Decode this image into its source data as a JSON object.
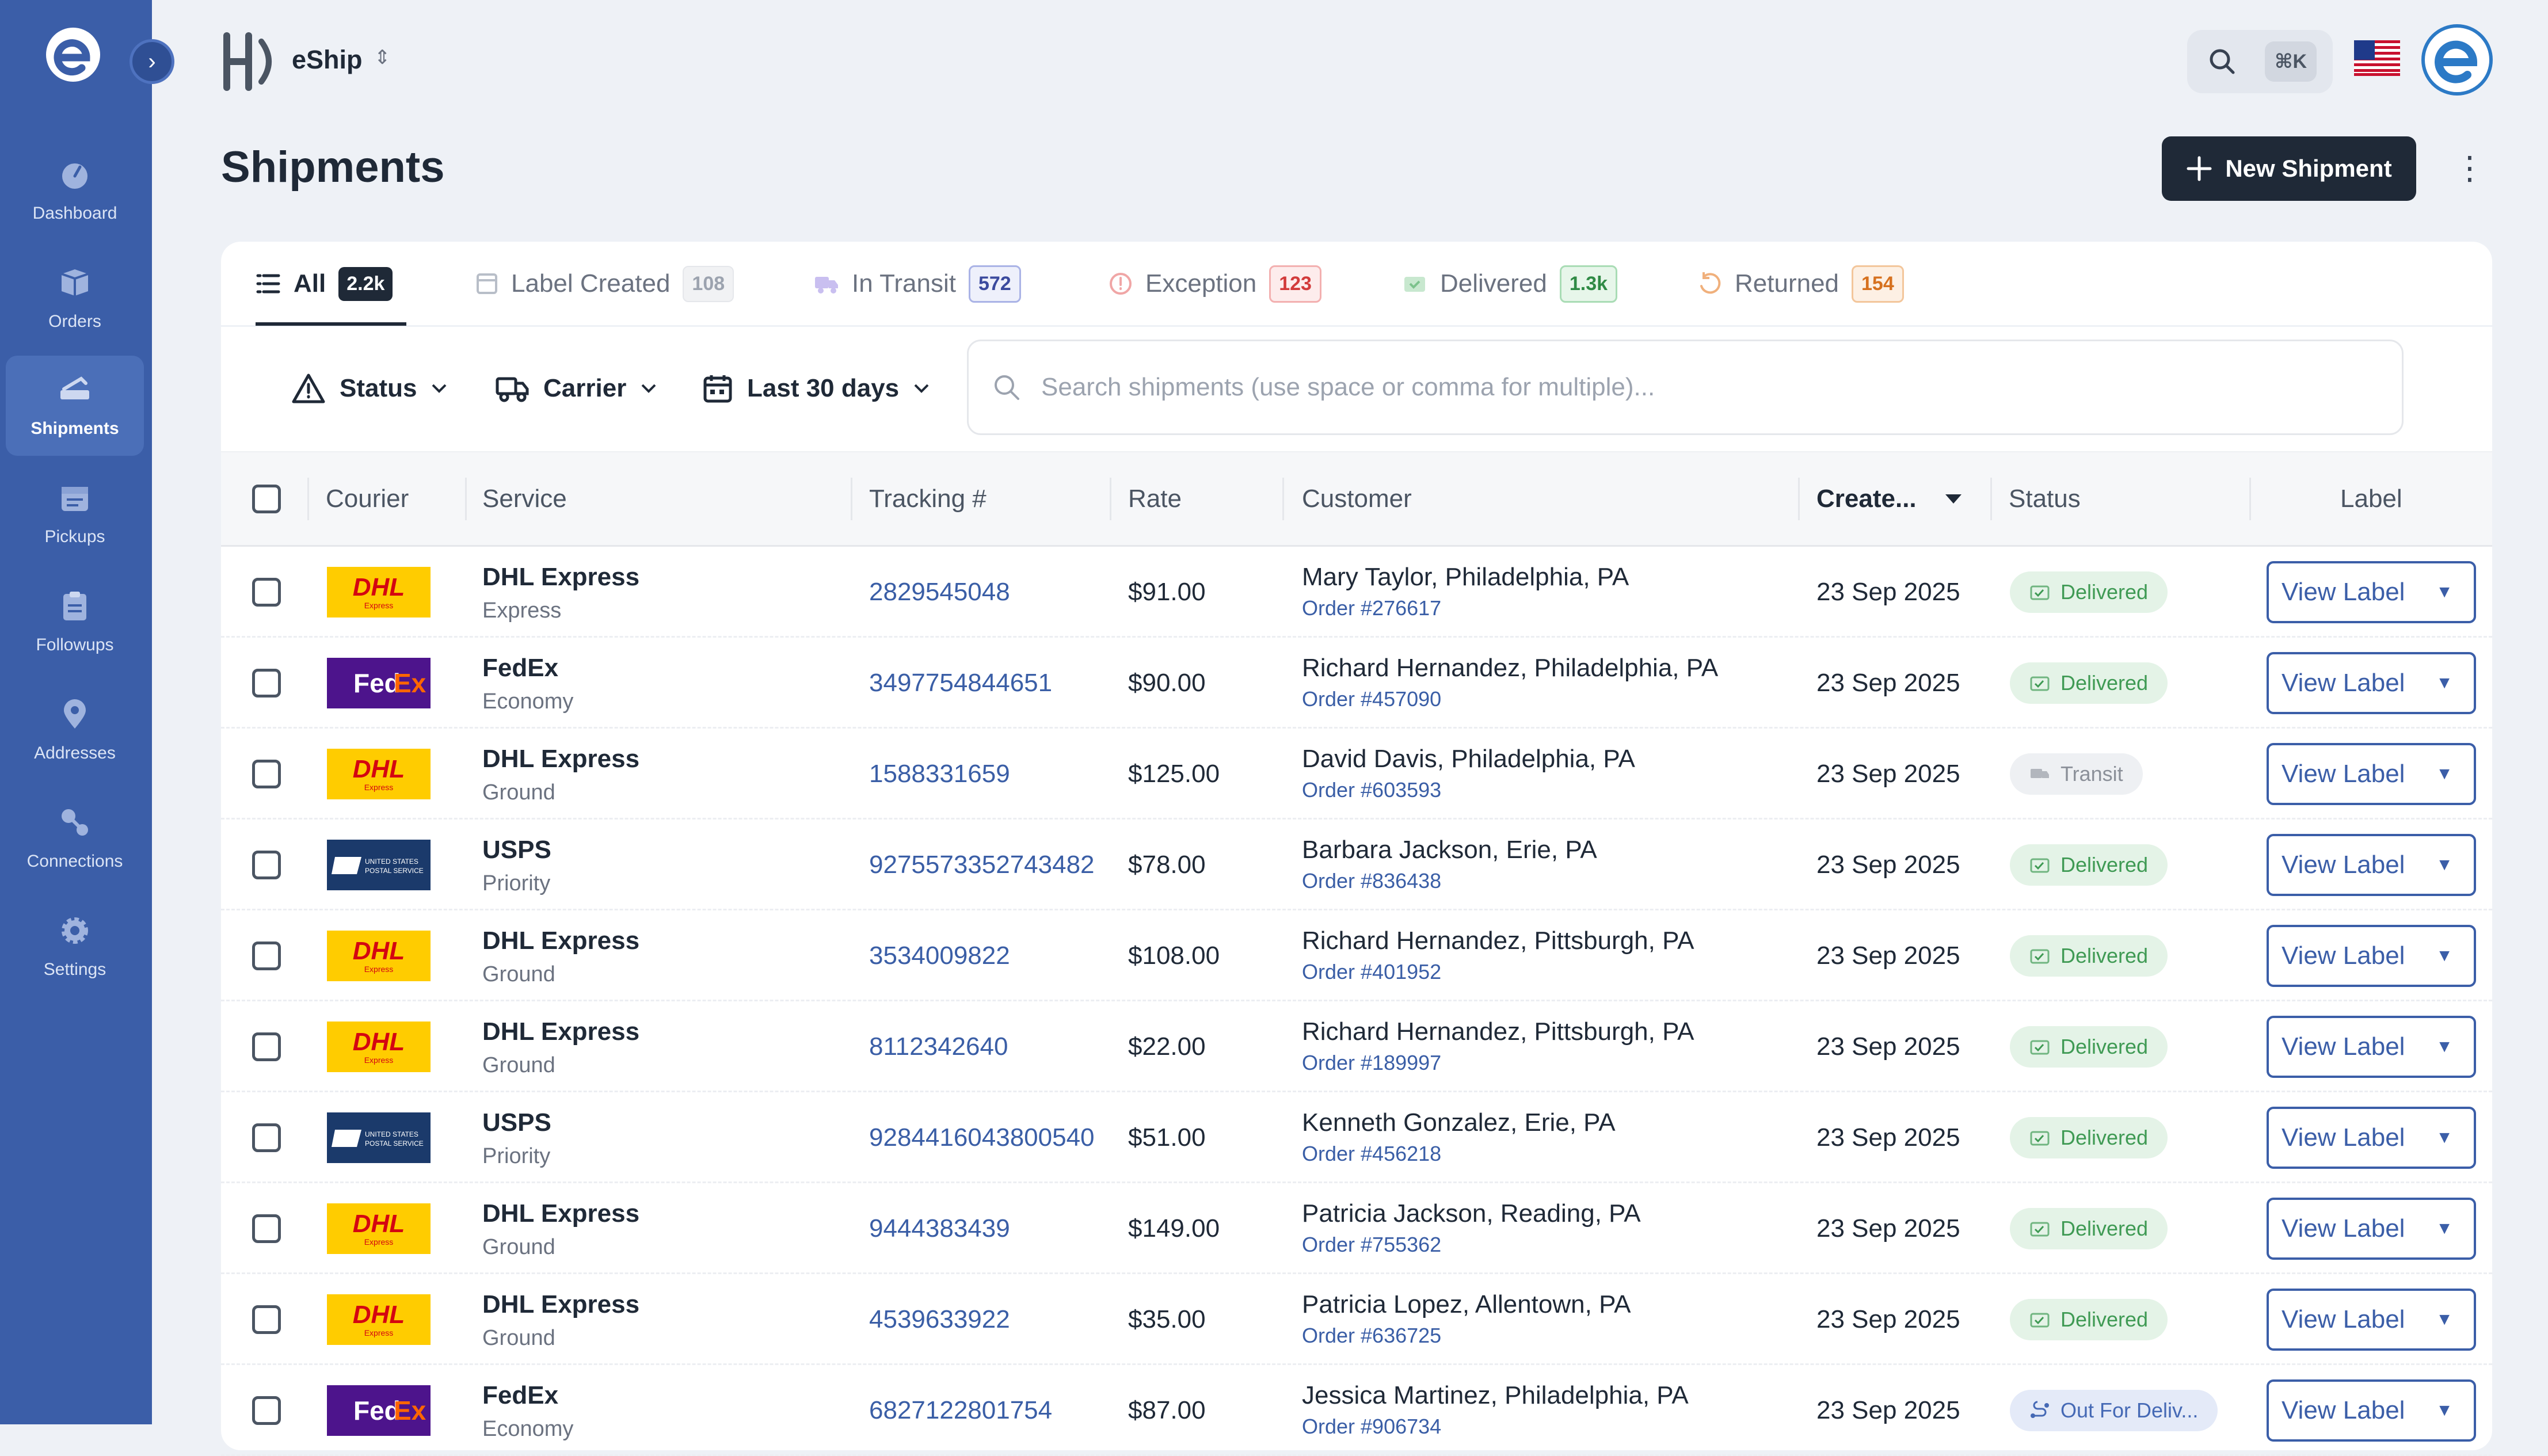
{
  "sidebar": {
    "items": [
      {
        "label": "Dashboard",
        "icon": "dashboard-icon"
      },
      {
        "label": "Orders",
        "icon": "orders-box-icon"
      },
      {
        "label": "Shipments",
        "icon": "shipments-icon",
        "active": true
      },
      {
        "label": "Pickups",
        "icon": "calendar-icon"
      },
      {
        "label": "Followups",
        "icon": "clipboard-icon"
      },
      {
        "label": "Addresses",
        "icon": "map-pin-icon"
      },
      {
        "label": "Connections",
        "icon": "connections-icon"
      },
      {
        "label": "Settings",
        "icon": "gear-icon"
      }
    ]
  },
  "topbar": {
    "brand": "eShip",
    "search_shortcut": "⌘K",
    "language_flag": "us-flag-icon"
  },
  "page": {
    "title": "Shipments",
    "new_button": "New Shipment"
  },
  "tabs": [
    {
      "label": "All",
      "count": "2.2k",
      "icon": "list-icon"
    },
    {
      "label": "Label Created",
      "count": "108",
      "icon": "label-icon"
    },
    {
      "label": "In Transit",
      "count": "572",
      "icon": "truck-icon"
    },
    {
      "label": "Exception",
      "count": "123",
      "icon": "alert-circle-icon"
    },
    {
      "label": "Delivered",
      "count": "1.3k",
      "icon": "package-check-icon"
    },
    {
      "label": "Returned",
      "count": "154",
      "icon": "return-icon"
    }
  ],
  "filters": {
    "status": "Status",
    "carrier": "Carrier",
    "date": "Last 30 days",
    "search_placeholder": "Search shipments (use space or comma for multiple)..."
  },
  "table": {
    "headers": {
      "courier": "Courier",
      "service": "Service",
      "tracking": "Tracking #",
      "rate": "Rate",
      "customer": "Customer",
      "created": "Create...",
      "status": "Status",
      "label": "Label"
    },
    "view_label": "View Label",
    "rows": [
      {
        "courier": "DHL",
        "service": "DHL Express",
        "service_type": "Express",
        "tracking": "2829545048",
        "rate": "$91.00",
        "customer": "Mary Taylor, Philadelphia, PA",
        "order": "Order #276617",
        "created": "23 Sep 2025",
        "status": "Delivered",
        "status_kind": "delivered"
      },
      {
        "courier": "FedEx",
        "service": "FedEx",
        "service_type": "Economy",
        "tracking": "3497754844651",
        "rate": "$90.00",
        "customer": "Richard Hernandez, Philadelphia, PA",
        "order": "Order #457090",
        "created": "23 Sep 2025",
        "status": "Delivered",
        "status_kind": "delivered"
      },
      {
        "courier": "DHL",
        "service": "DHL Express",
        "service_type": "Ground",
        "tracking": "1588331659",
        "rate": "$125.00",
        "customer": "David Davis, Philadelphia, PA",
        "order": "Order #603593",
        "created": "23 Sep 2025",
        "status": "Transit",
        "status_kind": "transit"
      },
      {
        "courier": "USPS",
        "service": "USPS",
        "service_type": "Priority",
        "tracking": "9275573352743482",
        "rate": "$78.00",
        "customer": "Barbara Jackson, Erie, PA",
        "order": "Order #836438",
        "created": "23 Sep 2025",
        "status": "Delivered",
        "status_kind": "delivered"
      },
      {
        "courier": "DHL",
        "service": "DHL Express",
        "service_type": "Ground",
        "tracking": "3534009822",
        "rate": "$108.00",
        "customer": "Richard Hernandez, Pittsburgh, PA",
        "order": "Order #401952",
        "created": "23 Sep 2025",
        "status": "Delivered",
        "status_kind": "delivered"
      },
      {
        "courier": "DHL",
        "service": "DHL Express",
        "service_type": "Ground",
        "tracking": "8112342640",
        "rate": "$22.00",
        "customer": "Richard Hernandez, Pittsburgh, PA",
        "order": "Order #189997",
        "created": "23 Sep 2025",
        "status": "Delivered",
        "status_kind": "delivered"
      },
      {
        "courier": "USPS",
        "service": "USPS",
        "service_type": "Priority",
        "tracking": "9284416043800540",
        "rate": "$51.00",
        "customer": "Kenneth Gonzalez, Erie, PA",
        "order": "Order #456218",
        "created": "23 Sep 2025",
        "status": "Delivered",
        "status_kind": "delivered"
      },
      {
        "courier": "DHL",
        "service": "DHL Express",
        "service_type": "Ground",
        "tracking": "9444383439",
        "rate": "$149.00",
        "customer": "Patricia Jackson, Reading, PA",
        "order": "Order #755362",
        "created": "23 Sep 2025",
        "status": "Delivered",
        "status_kind": "delivered"
      },
      {
        "courier": "DHL",
        "service": "DHL Express",
        "service_type": "Ground",
        "tracking": "4539633922",
        "rate": "$35.00",
        "customer": "Patricia Lopez, Allentown, PA",
        "order": "Order #636725",
        "created": "23 Sep 2025",
        "status": "Delivered",
        "status_kind": "delivered"
      },
      {
        "courier": "FedEx",
        "service": "FedEx",
        "service_type": "Economy",
        "tracking": "6827122801754",
        "rate": "$87.00",
        "customer": "Jessica Martinez, Philadelphia, PA",
        "order": "Order #906734",
        "created": "23 Sep 2025",
        "status": "Out For Deliv...",
        "status_kind": "out"
      }
    ]
  },
  "colors": {
    "sidebar": "#3b5ea8",
    "accent": "#3b5ea8",
    "dark_button": "#1f2937",
    "delivered": "#3f9a54"
  }
}
